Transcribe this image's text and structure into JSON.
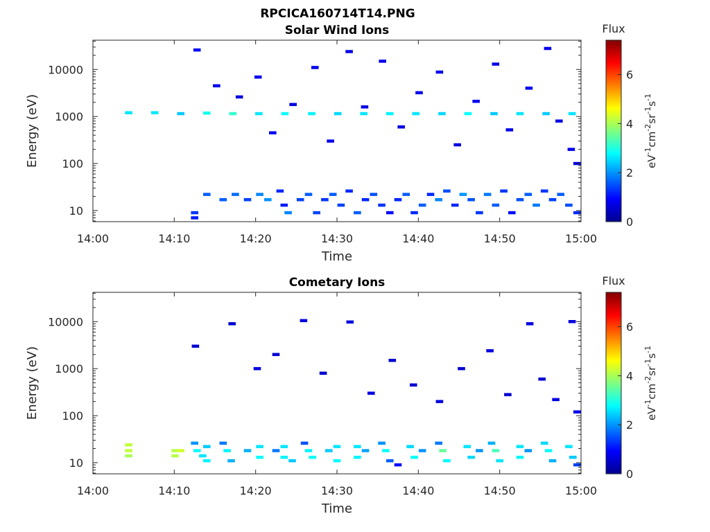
{
  "figure_title": "RPCICA160714T14.PNG",
  "colorbar": {
    "title": "Flux",
    "unit_text": "eV-1cm-2sr-1s-1",
    "range": [
      0,
      7.4
    ],
    "ticks": [
      "0",
      "2",
      "4",
      "6"
    ],
    "colormap": "jet"
  },
  "chart_data": [
    {
      "type": "heatmap",
      "title": "Solar Wind Ions",
      "xlabel": "Time",
      "ylabel": "Energy (eV)",
      "xlim": [
        "14:00",
        "15:00"
      ],
      "xticks": [
        "14:00",
        "14:10",
        "14:20",
        "14:30",
        "14:40",
        "14:50",
        "15:00"
      ],
      "y_scale": "log",
      "ylim": [
        5.8,
        42000
      ],
      "yticks": [
        "10",
        "100",
        "1000",
        "10000"
      ],
      "cell_width_min": 0.9,
      "cells": [
        [
          4.4,
          1200,
          2.6
        ],
        [
          7.6,
          1200,
          2.6
        ],
        [
          10.8,
          1150,
          2.4
        ],
        [
          14.0,
          1180,
          2.9
        ],
        [
          17.2,
          1150,
          3.1
        ],
        [
          20.4,
          1150,
          2.6
        ],
        [
          23.6,
          1150,
          2.8
        ],
        [
          26.9,
          1150,
          2.7
        ],
        [
          30.1,
          1150,
          2.5
        ],
        [
          33.3,
          1150,
          2.6
        ],
        [
          36.5,
          1150,
          2.7
        ],
        [
          39.7,
          1150,
          2.6
        ],
        [
          42.9,
          1150,
          2.5
        ],
        [
          46.1,
          1150,
          2.8
        ],
        [
          49.3,
          1150,
          2.4
        ],
        [
          52.5,
          1150,
          2.6
        ],
        [
          55.7,
          1150,
          2.4
        ],
        [
          58.9,
          1150,
          2.6
        ],
        [
          12.5,
          9,
          1.3
        ],
        [
          12.5,
          7,
          1.1
        ],
        [
          14.0,
          22,
          1.6
        ],
        [
          16.0,
          17,
          1.6
        ],
        [
          17.5,
          22,
          1.7
        ],
        [
          19.0,
          17,
          1.4
        ],
        [
          20.5,
          22,
          1.9
        ],
        [
          21.5,
          17,
          2.0
        ],
        [
          23.0,
          26,
          1.2
        ],
        [
          23.5,
          13,
          1.1
        ],
        [
          24.0,
          9,
          1.9
        ],
        [
          25.5,
          17,
          1.4
        ],
        [
          26.5,
          22,
          1.6
        ],
        [
          27.5,
          9,
          1.4
        ],
        [
          28.5,
          17,
          1.3
        ],
        [
          29.5,
          22,
          1.6
        ],
        [
          30.5,
          13,
          1.4
        ],
        [
          31.5,
          26,
          1.2
        ],
        [
          32.5,
          9,
          1.6
        ],
        [
          33.5,
          17,
          1.2
        ],
        [
          34.5,
          22,
          1.5
        ],
        [
          35.5,
          13,
          1.3
        ],
        [
          36.5,
          9,
          1.0
        ],
        [
          37.5,
          17,
          1.2
        ],
        [
          38.5,
          22,
          1.6
        ],
        [
          39.5,
          9,
          1.2
        ],
        [
          40.5,
          13,
          1.6
        ],
        [
          41.5,
          22,
          1.2
        ],
        [
          42.5,
          17,
          1.9
        ],
        [
          43.5,
          26,
          1.5
        ],
        [
          44.5,
          13,
          1.2
        ],
        [
          45.5,
          22,
          2.0
        ],
        [
          46.5,
          17,
          1.5
        ],
        [
          47.5,
          9,
          1.3
        ],
        [
          48.5,
          22,
          1.8
        ],
        [
          49.5,
          13,
          1.6
        ],
        [
          50.5,
          26,
          1.3
        ],
        [
          51.5,
          9,
          1.0
        ],
        [
          52.5,
          17,
          1.5
        ],
        [
          53.5,
          22,
          1.6
        ],
        [
          54.5,
          13,
          1.8
        ],
        [
          55.5,
          26,
          1.3
        ],
        [
          56.5,
          17,
          1.4
        ],
        [
          57.5,
          22,
          1.6
        ],
        [
          58.5,
          13,
          1.5
        ],
        [
          59.5,
          9,
          1.2
        ],
        [
          12.8,
          26000,
          0.9
        ],
        [
          15.2,
          4500,
          0.8
        ],
        [
          18.0,
          2600,
          0.7
        ],
        [
          20.3,
          6900,
          0.8
        ],
        [
          22.1,
          450,
          0.8
        ],
        [
          24.6,
          1800,
          0.7
        ],
        [
          27.3,
          11000,
          0.8
        ],
        [
          29.2,
          300,
          0.8
        ],
        [
          31.5,
          24000,
          0.8
        ],
        [
          33.4,
          1600,
          0.7
        ],
        [
          35.6,
          15000,
          0.8
        ],
        [
          37.9,
          600,
          0.7
        ],
        [
          40.1,
          3200,
          0.8
        ],
        [
          42.6,
          8800,
          0.8
        ],
        [
          44.8,
          250,
          0.7
        ],
        [
          47.1,
          2100,
          0.8
        ],
        [
          49.5,
          13000,
          0.7
        ],
        [
          51.2,
          520,
          0.8
        ],
        [
          53.6,
          4000,
          0.8
        ],
        [
          55.9,
          28000,
          0.8
        ],
        [
          57.3,
          800,
          0.7
        ],
        [
          58.8,
          200,
          0.8
        ],
        [
          59.5,
          100,
          0.8
        ]
      ]
    },
    {
      "type": "heatmap",
      "title": "Cometary Ions",
      "xlabel": "Time",
      "ylabel": "Energy (eV)",
      "xlim": [
        "14:00",
        "15:00"
      ],
      "xticks": [
        "14:00",
        "14:10",
        "14:20",
        "14:30",
        "14:40",
        "14:50",
        "15:00"
      ],
      "y_scale": "log",
      "ylim": [
        5.8,
        42000
      ],
      "yticks": [
        "10",
        "100",
        "1000",
        "10000"
      ],
      "cell_width_min": 0.9,
      "cells": [
        [
          4.4,
          24,
          4.2
        ],
        [
          4.4,
          18,
          4.2
        ],
        [
          4.4,
          14,
          4.0
        ],
        [
          10.1,
          18,
          4.1
        ],
        [
          10.8,
          18,
          4.3
        ],
        [
          10.1,
          14,
          4.1
        ],
        [
          12.5,
          26,
          2.0
        ],
        [
          12.8,
          18,
          2.8
        ],
        [
          13.5,
          14,
          2.6
        ],
        [
          14.0,
          22,
          2.4
        ],
        [
          14.0,
          11,
          2.7
        ],
        [
          16.0,
          26,
          1.8
        ],
        [
          16.5,
          18,
          2.7
        ],
        [
          17.0,
          11,
          2.2
        ],
        [
          19.0,
          18,
          2.2
        ],
        [
          20.5,
          22,
          2.6
        ],
        [
          20.5,
          13,
          2.8
        ],
        [
          22.5,
          18,
          1.8
        ],
        [
          23.5,
          22,
          2.6
        ],
        [
          23.5,
          13,
          2.7
        ],
        [
          24.5,
          11,
          2.4
        ],
        [
          26.0,
          26,
          1.5
        ],
        [
          26.5,
          18,
          2.7
        ],
        [
          27.0,
          13,
          2.8
        ],
        [
          29.0,
          18,
          2.4
        ],
        [
          30.0,
          22,
          2.6
        ],
        [
          30.0,
          11,
          2.8
        ],
        [
          32.5,
          22,
          2.6
        ],
        [
          32.5,
          13,
          2.7
        ],
        [
          33.5,
          18,
          2.1
        ],
        [
          35.5,
          26,
          2.0
        ],
        [
          36.0,
          18,
          2.8
        ],
        [
          36.5,
          11,
          1.6
        ],
        [
          37.5,
          9,
          1.0
        ],
        [
          39.0,
          22,
          2.5
        ],
        [
          39.5,
          13,
          2.8
        ],
        [
          40.5,
          18,
          2.0
        ],
        [
          42.5,
          26,
          1.8
        ],
        [
          43.0,
          18,
          3.5
        ],
        [
          43.5,
          11,
          2.8
        ],
        [
          46.0,
          22,
          2.6
        ],
        [
          46.5,
          13,
          2.5
        ],
        [
          47.5,
          18,
          2.0
        ],
        [
          49.0,
          26,
          2.2
        ],
        [
          49.5,
          18,
          3.3
        ],
        [
          50.0,
          11,
          2.6
        ],
        [
          52.5,
          22,
          2.6
        ],
        [
          52.5,
          13,
          2.7
        ],
        [
          53.5,
          18,
          2.0
        ],
        [
          55.5,
          26,
          2.5
        ],
        [
          56.0,
          18,
          2.8
        ],
        [
          56.5,
          11,
          2.2
        ],
        [
          58.5,
          22,
          2.6
        ],
        [
          59.0,
          13,
          2.4
        ],
        [
          59.5,
          9,
          1.4
        ],
        [
          12.6,
          3000,
          0.6
        ],
        [
          17.1,
          9000,
          0.6
        ],
        [
          20.2,
          1000,
          0.7
        ],
        [
          22.5,
          2000,
          0.6
        ],
        [
          25.9,
          10500,
          0.7
        ],
        [
          28.3,
          800,
          0.6
        ],
        [
          31.6,
          9800,
          0.7
        ],
        [
          34.2,
          300,
          0.7
        ],
        [
          36.8,
          1500,
          0.6
        ],
        [
          39.4,
          450,
          0.6
        ],
        [
          42.6,
          200,
          0.7
        ],
        [
          45.3,
          1000,
          0.6
        ],
        [
          48.8,
          2400,
          0.7
        ],
        [
          51.0,
          280,
          0.6
        ],
        [
          53.7,
          9000,
          0.7
        ],
        [
          55.2,
          600,
          0.6
        ],
        [
          56.9,
          220,
          0.7
        ],
        [
          58.9,
          10000,
          0.7
        ],
        [
          59.5,
          120,
          0.8
        ]
      ]
    }
  ]
}
